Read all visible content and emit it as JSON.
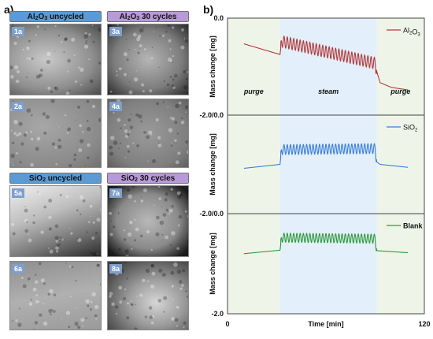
{
  "panel_a_label": "a)",
  "panel_b_label": "b)",
  "sem_groups": [
    {
      "label_pre": "Al",
      "label_sub1": "2",
      "label_mid": "O",
      "label_sub2": "3",
      "label_post": " uncycled",
      "color": "#5b9bd5"
    },
    {
      "label_pre": "Al",
      "label_sub1": "2",
      "label_mid": "O",
      "label_sub2": "3",
      "label_post": " 30 cycles",
      "color": "#b99ad8"
    },
    {
      "label_pre": "SiO",
      "label_sub1": "2",
      "label_mid": "",
      "label_sub2": "",
      "label_post": " uncycled",
      "color": "#5b9bd5"
    },
    {
      "label_pre": "SiO",
      "label_sub1": "2",
      "label_mid": "",
      "label_sub2": "",
      "label_post": " 30 cycles",
      "color": "#b99ad8"
    }
  ],
  "sem_tags": [
    "1a",
    "3a",
    "2a",
    "4a",
    "5a",
    "7a",
    "6a",
    "8a"
  ],
  "chart_data": {
    "type": "line",
    "xlabel": "Time [min]",
    "xlim": [
      0,
      120
    ],
    "x_ticks": [
      "0",
      "120"
    ],
    "ylabel": "Mass change  [mg]",
    "y_tick_labels": [
      "0.0",
      "-2.0/0.0",
      "-2.0/0.0",
      "-2.0"
    ],
    "phases": [
      {
        "name": "purge",
        "x_start": 0,
        "x_end": 32
      },
      {
        "name": "steam",
        "x_start": 32,
        "x_end": 91
      },
      {
        "name": "purge",
        "x_start": 91,
        "x_end": 120
      }
    ],
    "phase_colors": {
      "purge": "#eef5e8",
      "steam": "#e3effb"
    },
    "panels": [
      {
        "name": "Al2O3",
        "legend_pre": "Al",
        "legend_sub1": "2",
        "legend_mid": "O",
        "legend_sub2": "3",
        "color": "#b23a3a",
        "description": "mass change vs time",
        "baseline_points": [
          [
            10,
            -0.53
          ],
          [
            32,
            -0.75
          ],
          [
            33,
            -0.48
          ],
          [
            90,
            -0.93
          ],
          [
            91,
            -1.1
          ],
          [
            93,
            -1.33
          ],
          [
            100,
            -1.43
          ],
          [
            110,
            -1.48
          ]
        ],
        "oscillation_amplitude": 0.12,
        "cycles": 30
      },
      {
        "name": "SiO2",
        "legend_pre": "SiO",
        "legend_sub1": "2",
        "legend_mid": "",
        "legend_sub2": "",
        "color": "#3c7fd8",
        "baseline_points": [
          [
            10,
            -1.08
          ],
          [
            32,
            -1.0
          ],
          [
            33,
            -0.7
          ],
          [
            90,
            -0.68
          ],
          [
            91,
            -0.95
          ],
          [
            93,
            -1.0
          ],
          [
            110,
            -1.06
          ]
        ],
        "oscillation_amplitude": 0.1,
        "cycles": 30
      },
      {
        "name": "Blank",
        "legend_pre": "Blank",
        "legend_sub1": "",
        "legend_mid": "",
        "legend_sub2": "",
        "color": "#2e9a3a",
        "baseline_points": [
          [
            10,
            -0.8
          ],
          [
            32,
            -0.73
          ],
          [
            33,
            -0.48
          ],
          [
            90,
            -0.5
          ],
          [
            91,
            -0.74
          ],
          [
            110,
            -0.78
          ]
        ],
        "oscillation_amplitude": 0.09,
        "cycles": 30
      }
    ]
  }
}
